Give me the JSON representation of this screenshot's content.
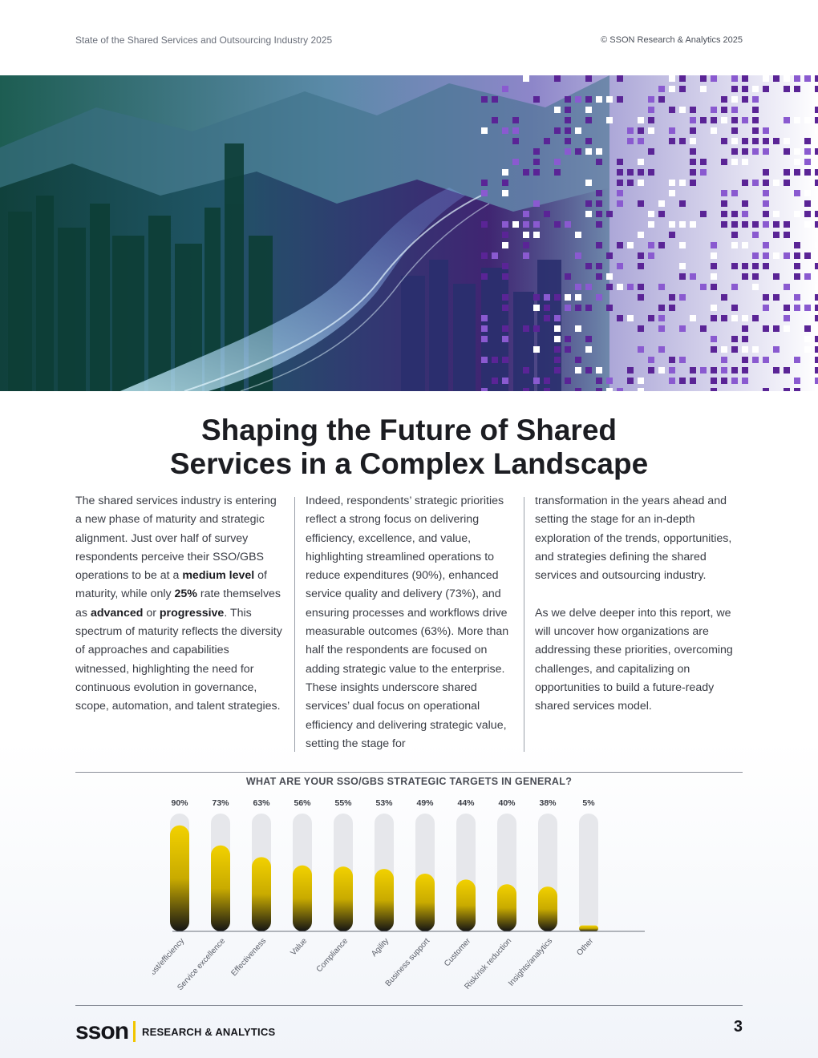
{
  "header": {
    "left": "State of the Shared Services and Outsourcing Industry 2025",
    "right": "© SSON Research & Analytics 2025"
  },
  "title": {
    "line1": "Shaping the Future of Shared",
    "line2": "Services in a Complex Landscape"
  },
  "columns": {
    "col1": {
      "t1": "The shared services industry is entering a new phase of maturity and strategic alignment. Just over half of survey respondents perceive their SSO/GBS operations to be at a ",
      "b1": "medium level",
      "t2": " of maturity, while only ",
      "b2": "25%",
      "t3": " rate themselves as ",
      "b3": "advanced",
      "t4": " or ",
      "b4": "progressive",
      "t5": ". This spectrum of maturity reflects the diversity of approaches and capabilities witnessed, highlighting the need for continuous evolution in governance, scope, automation, and talent strategies."
    },
    "col2": "Indeed, respondents’ strategic priorities reflect a strong focus on delivering efficiency, excellence, and value, highlighting streamlined operations to reduce expenditures (90%), enhanced service quality and delivery (73%), and ensuring processes and workflows drive measurable outcomes (63%). More than half the respondents are focused on adding strategic value to the enterprise. These insights underscore shared services’ dual focus on operational efficiency and delivering strategic value, setting the stage for",
    "col3_p1": "transformation in the years ahead and setting the stage for an in-depth exploration of the trends, opportunities, and strategies defining the shared services and outsourcing industry.",
    "col3_p2": "As we delve deeper into this report, we will uncover how organizations are addressing these priorities, overcoming challenges, and capitalizing on opportunities to build a future-ready shared services model."
  },
  "chart_data": {
    "type": "bar",
    "title": "WHAT ARE YOUR SSO/GBS STRATEGIC TARGETS IN GENERAL?",
    "categories": [
      "Cost/efficiency",
      "Service excellence",
      "Effectiveness",
      "Value",
      "Compliance",
      "Agility",
      "Business support",
      "Customer",
      "Risk/risk reduction",
      "Insights/analytics",
      "Other"
    ],
    "values": [
      90,
      73,
      63,
      56,
      55,
      53,
      49,
      44,
      40,
      38,
      5
    ],
    "value_labels": [
      "90%",
      "73%",
      "63%",
      "56%",
      "55%",
      "53%",
      "49%",
      "44%",
      "40%",
      "38%",
      "5%"
    ],
    "ylim": [
      0,
      100
    ],
    "xlabel": "",
    "ylabel": "",
    "colors": {
      "bar_top": "#f2d100",
      "bar_bottom": "#141414",
      "track": "#e6e7eb"
    }
  },
  "footer": {
    "logo": "sson",
    "logo_sub": "RESEARCH & ANALYTICS",
    "page_number": "3"
  }
}
